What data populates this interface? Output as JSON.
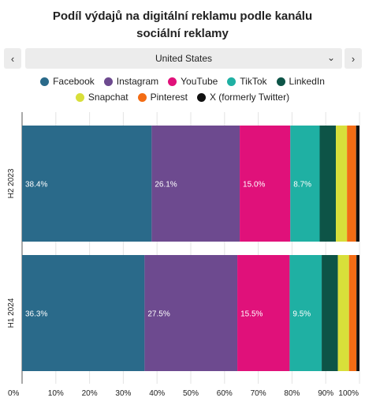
{
  "header": {
    "title": "Podíl výdajů na digitální reklamu podle kanálu sociální reklamy"
  },
  "controls": {
    "prev_icon": "‹",
    "next_icon": "›",
    "selected_region": "United States",
    "dropdown_icon": "⌄"
  },
  "chart_data": {
    "type": "bar",
    "orientation": "horizontal",
    "stacked": true,
    "percent": true,
    "categories": [
      "H2 2023",
      "H1 2024"
    ],
    "series": [
      {
        "name": "Facebook",
        "color": "#2a6a8a",
        "values": [
          38.4,
          36.3
        ]
      },
      {
        "name": "Instagram",
        "color": "#6d4a8f",
        "values": [
          26.1,
          27.5
        ]
      },
      {
        "name": "YouTube",
        "color": "#e0117a",
        "values": [
          15.0,
          15.5
        ]
      },
      {
        "name": "TikTok",
        "color": "#1fb0a3",
        "values": [
          8.7,
          9.5
        ]
      },
      {
        "name": "LinkedIn",
        "color": "#0d5447",
        "values": [
          4.8,
          4.8
        ]
      },
      {
        "name": "Snapchat",
        "color": "#d8df3a",
        "values": [
          3.3,
          3.3
        ]
      },
      {
        "name": "Pinterest",
        "color": "#f36c14",
        "values": [
          2.7,
          2.2
        ]
      },
      {
        "name": "X (formerly Twitter)",
        "color": "#111111",
        "values": [
          1.0,
          0.9
        ]
      }
    ],
    "data_labels": [
      [
        "38.4%",
        "26.1%",
        "15.0%",
        "8.7%"
      ],
      [
        "36.3%",
        "27.5%",
        "15.5%",
        "9.5%"
      ]
    ],
    "x_ticks": [
      "0%",
      "10%",
      "20%",
      "30%",
      "40%",
      "50%",
      "60%",
      "70%",
      "80%",
      "90%",
      "100%"
    ],
    "xlim": [
      0,
      100
    ],
    "grid": true,
    "legend_position": "top"
  }
}
